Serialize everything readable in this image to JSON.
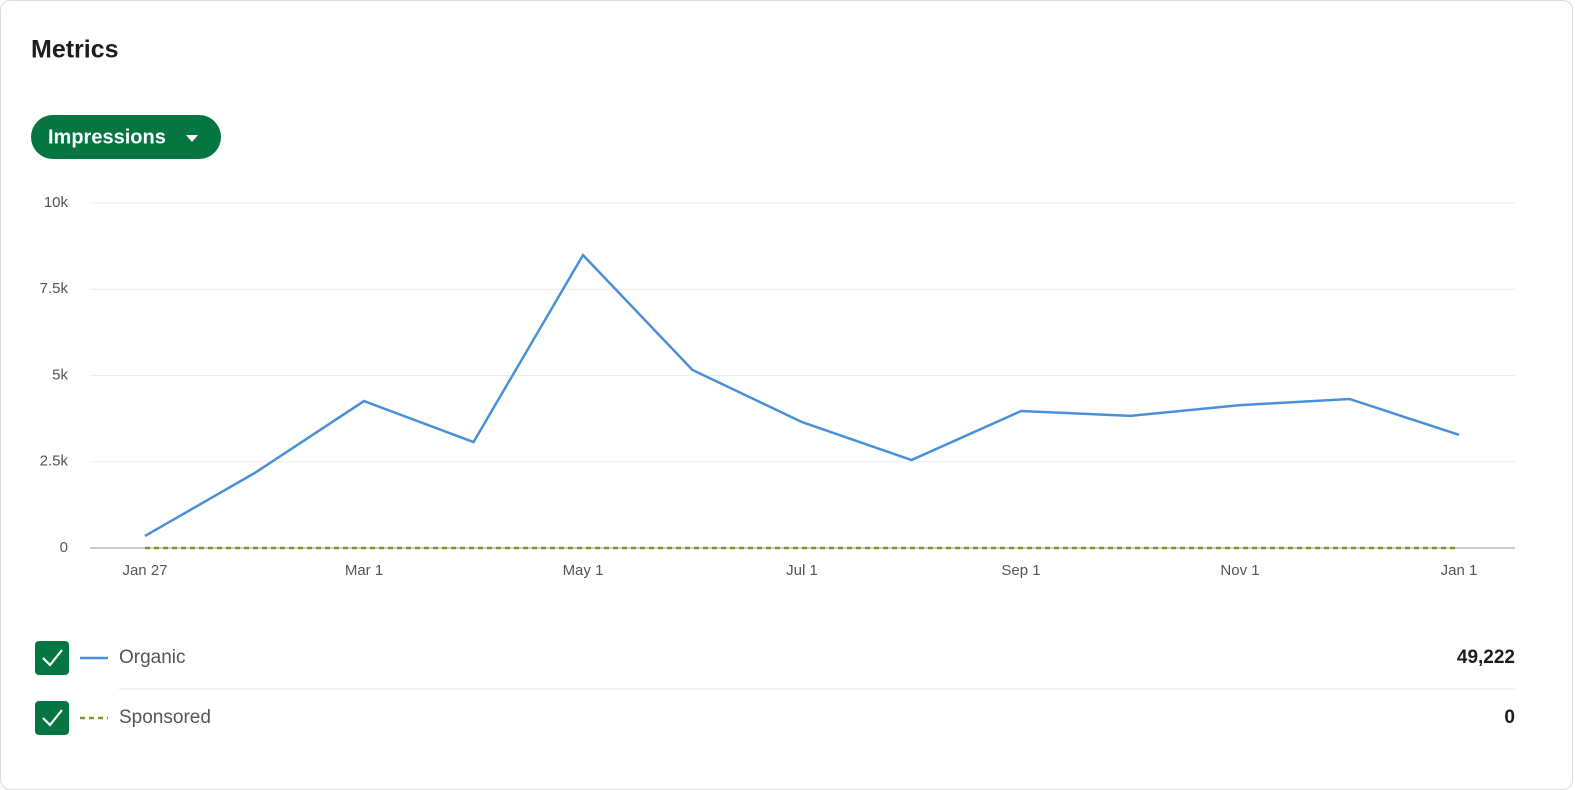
{
  "title": "Metrics",
  "dropdown": "Impressions",
  "chart_data": {
    "type": "line",
    "categories": [
      "Jan 27",
      null,
      "Mar 1",
      null,
      "May 1",
      null,
      "Jul 1",
      null,
      "Sep 1",
      null,
      "Nov 1",
      null,
      "Jan 1"
    ],
    "series": [
      {
        "name": "Organic",
        "color": "#4a90d9",
        "style": "solid",
        "values": [
          350,
          2170,
          4260,
          3070,
          8490,
          5160,
          3650,
          2550,
          3970,
          3830,
          4140,
          4320,
          3280
        ]
      },
      {
        "name": "Sponsored",
        "color": "#7a9a2a",
        "style": "dashed",
        "values": [
          0,
          0,
          0,
          0,
          0,
          0,
          0,
          0,
          0,
          0,
          0,
          0,
          0
        ]
      }
    ],
    "ylim": [
      0,
      10000
    ],
    "yticks": [
      0,
      {
        "value": 2500,
        "label": "2.5k"
      },
      {
        "value": 5000,
        "label": "5k"
      },
      {
        "value": 7500,
        "label": "7.5k"
      },
      {
        "value": 10000,
        "label": "10k"
      }
    ],
    "grid": true
  },
  "totals": [
    "49,222",
    "0"
  ]
}
